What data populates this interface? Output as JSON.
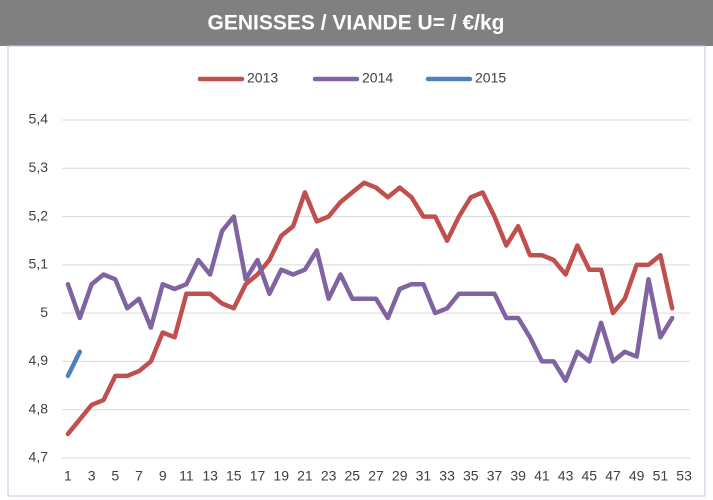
{
  "chart_data": {
    "type": "line",
    "title": "GENISSES / VIANDE U= /  €/kg",
    "categories": [
      1,
      null,
      3,
      null,
      5,
      null,
      7,
      null,
      9,
      null,
      11,
      null,
      13,
      null,
      15,
      null,
      17,
      null,
      19,
      null,
      21,
      null,
      23,
      null,
      25,
      null,
      27,
      null,
      29,
      null,
      31,
      null,
      33,
      null,
      35,
      null,
      37,
      null,
      39,
      null,
      41,
      null,
      43,
      null,
      45,
      null,
      47,
      null,
      49,
      null,
      51,
      null,
      53
    ],
    "series": [
      {
        "name": "2013",
        "color": "#c0504d",
        "values": [
          4.75,
          4.78,
          4.81,
          4.82,
          4.87,
          4.87,
          4.88,
          4.9,
          4.96,
          4.95,
          5.04,
          5.04,
          5.04,
          5.02,
          5.01,
          5.06,
          5.08,
          5.11,
          5.16,
          5.18,
          5.25,
          5.19,
          5.2,
          5.23,
          5.25,
          5.27,
          5.26,
          5.24,
          5.26,
          5.24,
          5.2,
          5.2,
          5.15,
          5.2,
          5.24,
          5.25,
          5.2,
          5.14,
          5.18,
          5.12,
          5.12,
          5.11,
          5.08,
          5.14,
          5.09,
          5.09,
          5.0,
          5.03,
          5.1,
          5.1,
          5.12,
          5.01,
          null
        ]
      },
      {
        "name": "2014",
        "color": "#8064a2",
        "values": [
          5.06,
          4.99,
          5.06,
          5.08,
          5.07,
          5.01,
          5.03,
          4.97,
          5.06,
          5.05,
          5.06,
          5.11,
          5.08,
          5.17,
          5.2,
          5.07,
          5.11,
          5.04,
          5.09,
          5.08,
          5.09,
          5.13,
          5.03,
          5.08,
          5.03,
          5.03,
          5.03,
          4.99,
          5.05,
          5.06,
          5.06,
          5.0,
          5.01,
          5.04,
          5.04,
          5.04,
          5.04,
          4.99,
          4.99,
          4.95,
          4.9,
          4.9,
          4.86,
          4.92,
          4.9,
          4.98,
          4.9,
          4.92,
          4.91,
          5.07,
          4.95,
          4.99,
          null
        ]
      },
      {
        "name": "2015",
        "color": "#4f81bd",
        "values": [
          4.87,
          4.92,
          null,
          null,
          null,
          null,
          null,
          null,
          null,
          null,
          null,
          null,
          null,
          null,
          null,
          null,
          null,
          null,
          null,
          null,
          null,
          null,
          null,
          null,
          null,
          null,
          null,
          null,
          null,
          null,
          null,
          null,
          null,
          null,
          null,
          null,
          null,
          null,
          null,
          null,
          null,
          null,
          null,
          null,
          null,
          null,
          null,
          null,
          null,
          null,
          null,
          null,
          null
        ]
      }
    ],
    "ylim": [
      4.7,
      5.4
    ],
    "yticks": [
      {
        "value": 4.7,
        "label": "4,7"
      },
      {
        "value": 4.8,
        "label": "4,8"
      },
      {
        "value": 4.9,
        "label": "4,9"
      },
      5,
      {
        "value": 5.1,
        "label": "5,1"
      },
      {
        "value": 5.2,
        "label": "5,2"
      },
      {
        "value": 5.3,
        "label": "5,3"
      },
      {
        "value": 5.4,
        "label": "5,4"
      }
    ],
    "grid": true,
    "legend": "top"
  }
}
